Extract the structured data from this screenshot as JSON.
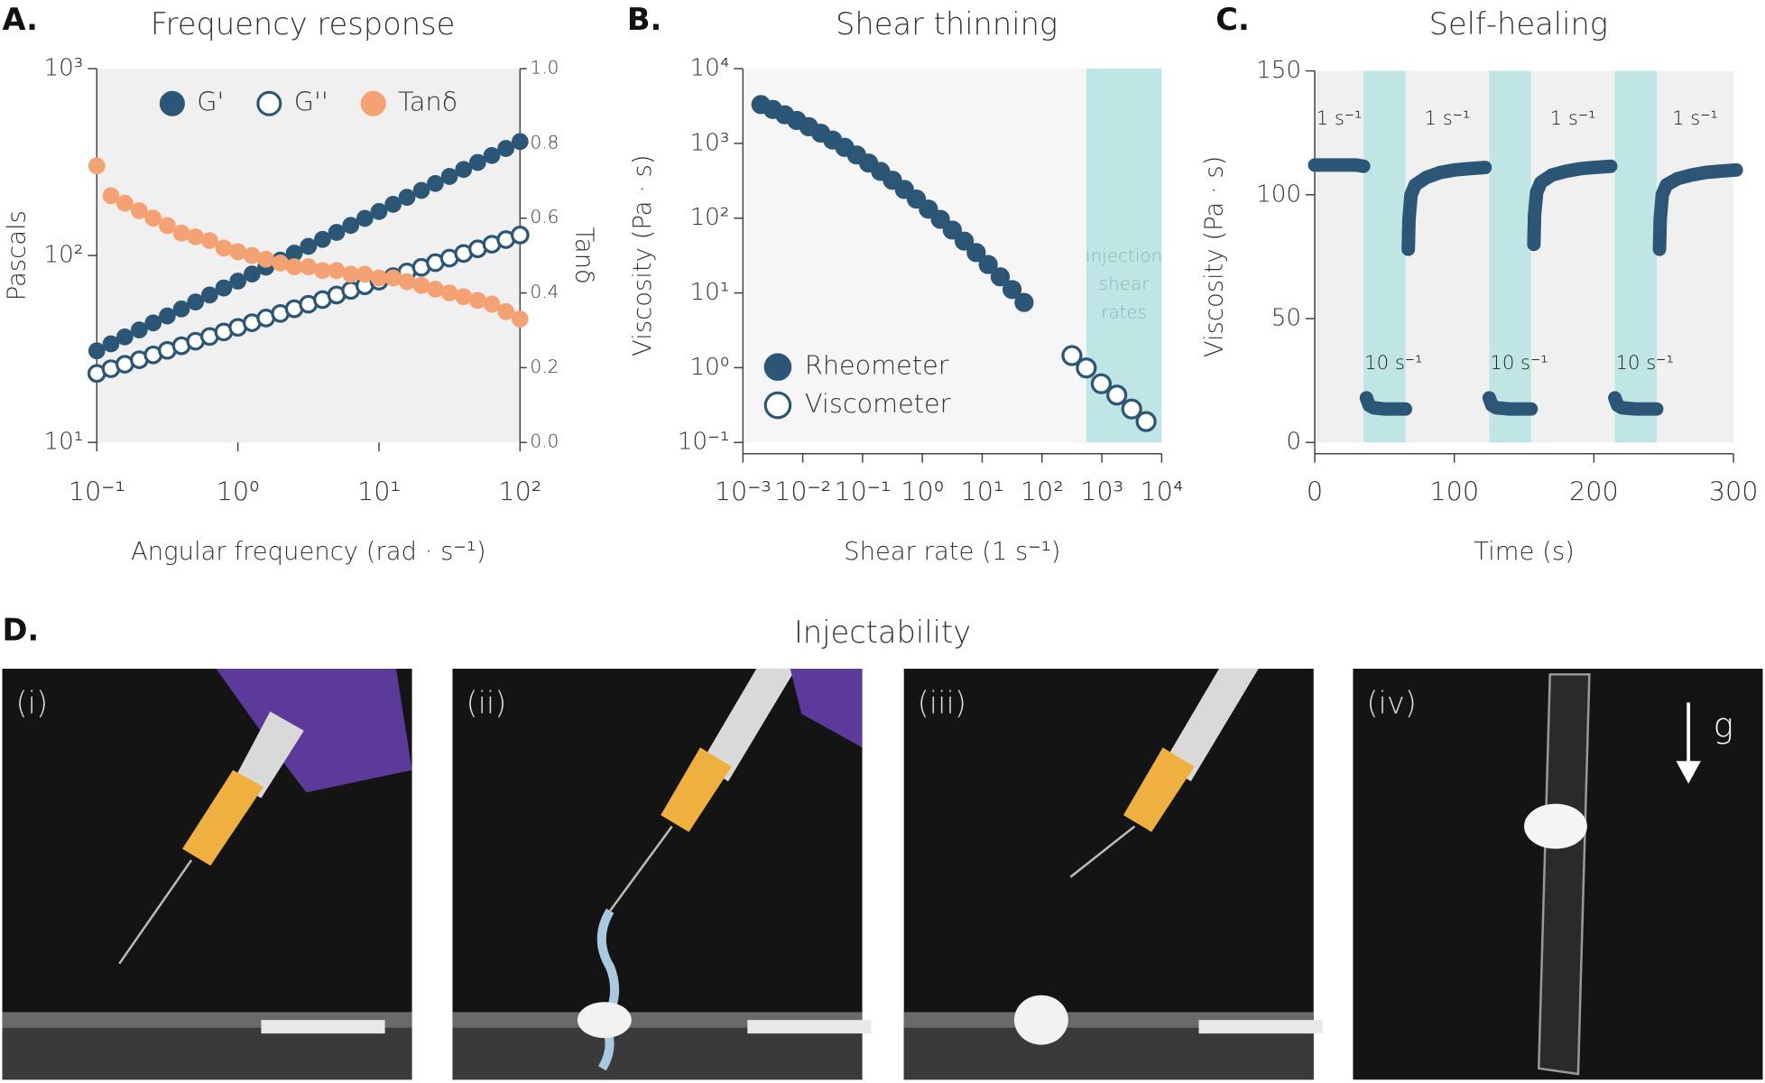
{
  "chart_data": [
    {
      "type": "scatter",
      "label": "A.",
      "title": "Frequency response",
      "x_label": "Angular frequency  (rad · s⁻¹)",
      "y_label": "Pascals",
      "y2_label": "Tanδ",
      "xscale": "log",
      "yscale": "log",
      "xlim": [
        0.1,
        100
      ],
      "ylim": [
        10,
        1000
      ],
      "y2lim": [
        0,
        1
      ],
      "xticks": [
        {
          "value": 0.1,
          "label": "10⁻¹"
        },
        {
          "value": 1,
          "label": "10⁰"
        },
        {
          "value": 10,
          "label": "10¹"
        },
        {
          "value": 100,
          "label": "10²"
        }
      ],
      "yticks": [
        {
          "value": 10,
          "label": "10¹"
        },
        {
          "value": 100,
          "label": "10²"
        },
        {
          "value": 1000,
          "label": "10³"
        }
      ],
      "y2ticks": [
        {
          "value": 0,
          "label": "0.0"
        },
        {
          "value": 0.2,
          "label": "0.2"
        },
        {
          "value": 0.4,
          "label": "0.4"
        },
        {
          "value": 0.6,
          "label": "0.6"
        },
        {
          "value": 0.8,
          "label": "0.8"
        },
        {
          "value": 1,
          "label": "1.0"
        }
      ],
      "legend": "top",
      "x": [
        0.1,
        0.126,
        0.158,
        0.2,
        0.251,
        0.316,
        0.398,
        0.501,
        0.631,
        0.794,
        1,
        1.26,
        1.58,
        2,
        2.51,
        3.16,
        3.98,
        5.01,
        6.31,
        7.94,
        10,
        12.6,
        15.8,
        20,
        25.1,
        31.6,
        39.8,
        50.1,
        63.1,
        79.4,
        100
      ],
      "series": [
        {
          "name": "G'",
          "color": "#2b5676",
          "marker": "filled",
          "values": [
            30.9,
            33.7,
            36.7,
            40.0,
            43.6,
            47.5,
            51.8,
            56.4,
            61.5,
            67.0,
            73.0,
            79.6,
            86.7,
            94.5,
            103,
            112,
            122,
            133,
            145,
            158,
            172,
            188,
            205,
            223,
            243,
            265,
            289,
            315,
            343,
            374,
            407
          ]
        },
        {
          "name": "G''",
          "color": "#2b5676",
          "marker": "open",
          "values": [
            23.4,
            24.8,
            26.2,
            27.7,
            29.4,
            31.1,
            32.9,
            34.8,
            36.9,
            39.0,
            41.3,
            43.7,
            46.3,
            49.0,
            51.9,
            54.9,
            58.1,
            61.5,
            65.1,
            68.9,
            72.9,
            77.2,
            81.7,
            86.5,
            91.6,
            96.9,
            102.6,
            108.6,
            115,
            121.7,
            128.8
          ]
        },
        {
          "name": "Tanδ",
          "color": "#f4a273",
          "marker": "filled",
          "axis": "y2",
          "values": [
            0.74,
            0.66,
            0.64,
            0.62,
            0.6,
            0.58,
            0.56,
            0.55,
            0.54,
            0.52,
            0.51,
            0.5,
            0.49,
            0.48,
            0.47,
            0.47,
            0.46,
            0.46,
            0.45,
            0.45,
            0.44,
            0.44,
            0.43,
            0.42,
            0.41,
            0.4,
            0.39,
            0.38,
            0.37,
            0.35,
            0.33
          ]
        }
      ]
    },
    {
      "type": "scatter",
      "label": "B.",
      "title": "Shear thinning",
      "x_label": "Shear rate (1 s⁻¹)",
      "y_label": "Viscosity (Pa · s)",
      "xscale": "log",
      "yscale": "log",
      "xlim": [
        0.001,
        10000
      ],
      "ylim": [
        0.1,
        10000
      ],
      "xticks": [
        {
          "value": 0.001,
          "label": "10⁻³"
        },
        {
          "value": 0.01,
          "label": "10⁻²"
        },
        {
          "value": 0.1,
          "label": "10⁻¹"
        },
        {
          "value": 1,
          "label": "10⁰"
        },
        {
          "value": 10,
          "label": "10¹"
        },
        {
          "value": 100,
          "label": "10²"
        },
        {
          "value": 1000,
          "label": "10³"
        },
        {
          "value": 10000,
          "label": "10⁴"
        }
      ],
      "yticks": [
        {
          "value": 0.1,
          "label": "10⁻¹"
        },
        {
          "value": 1,
          "label": "10⁰"
        },
        {
          "value": 10,
          "label": "10¹"
        },
        {
          "value": 100,
          "label": "10²"
        },
        {
          "value": 1000,
          "label": "10³"
        },
        {
          "value": 10000,
          "label": "10⁴"
        }
      ],
      "band": {
        "range": [
          550,
          10000
        ],
        "color": "#bfe6e4",
        "label": [
          "injection",
          "shear",
          "rates"
        ]
      },
      "legend": "lower left",
      "series": [
        {
          "name": "Rheometer",
          "color": "#2b5676",
          "marker": "filled",
          "x": [
            0.002,
            0.00316,
            0.005,
            0.00794,
            0.0126,
            0.02,
            0.0316,
            0.0501,
            0.0794,
            0.126,
            0.2,
            0.316,
            0.501,
            0.794,
            1.26,
            2,
            3.16,
            5.01,
            7.94,
            12.6,
            20,
            31.6,
            50.1
          ],
          "values": [
            3311,
            2851,
            2415,
            2028,
            1675,
            1371,
            1109,
            887,
            701,
            546,
            422,
            321,
            242,
            180,
            132,
            96.4,
            69.3,
            49.3,
            34.6,
            24.0,
            16.4,
            11.1,
            7.46
          ]
        },
        {
          "name": "Viscometer",
          "color": "#2b5676",
          "marker": "open",
          "x": [
            316,
            550,
            977,
            1780,
            3160,
            5500
          ],
          "values": [
            1.45,
            0.99,
            0.61,
            0.43,
            0.28,
            0.19
          ]
        }
      ]
    },
    {
      "type": "line",
      "label": "C.",
      "title": "Self-healing",
      "x_label": "Time (s)",
      "y_label": "Viscosity (Pa · s)",
      "xlim": [
        0,
        300
      ],
      "ylim": [
        0,
        150
      ],
      "xticks": [
        0,
        100,
        200,
        300
      ],
      "yticks": [
        0,
        50,
        100,
        150
      ],
      "color": "#2b5676",
      "bands": [
        [
          35,
          65
        ],
        [
          125,
          155
        ],
        [
          215,
          245
        ]
      ],
      "band_color": "#bfe6e4",
      "rate_labels": [
        "1 s⁻¹",
        "10 s⁻¹"
      ],
      "x": [
        0,
        10,
        20,
        30,
        35,
        36,
        37,
        39,
        42,
        50,
        60,
        65,
        66,
        67,
        67.5,
        69,
        72,
        80,
        90,
        100,
        110,
        122,
        123,
        125,
        127,
        130,
        140,
        150,
        155,
        156,
        157,
        157.5,
        159,
        162,
        170,
        180,
        190,
        200,
        212,
        213,
        215,
        217,
        220,
        230,
        240,
        245,
        246,
        247,
        247.5,
        249,
        252,
        260,
        270,
        280,
        290,
        302
      ],
      "values": [
        112,
        112,
        112,
        112,
        111.5,
        null,
        18,
        15,
        14,
        13.5,
        13.5,
        13.5,
        null,
        78,
        90,
        100,
        104,
        107,
        109,
        110,
        110.5,
        111,
        null,
        18,
        15,
        14,
        13.5,
        13.5,
        13.5,
        null,
        80,
        92,
        101,
        105,
        108,
        109.5,
        110.5,
        111,
        111.5,
        null,
        18,
        15,
        14,
        13.5,
        13.5,
        13.5,
        null,
        78,
        90,
        100,
        104,
        106.5,
        108,
        109,
        109.5,
        110
      ]
    }
  ],
  "photo_panel": {
    "label": "D.",
    "title": "Injectability",
    "photos": [
      "(i)",
      "(ii)",
      "(iii)",
      "(iv)"
    ],
    "gravity_label": "g"
  }
}
